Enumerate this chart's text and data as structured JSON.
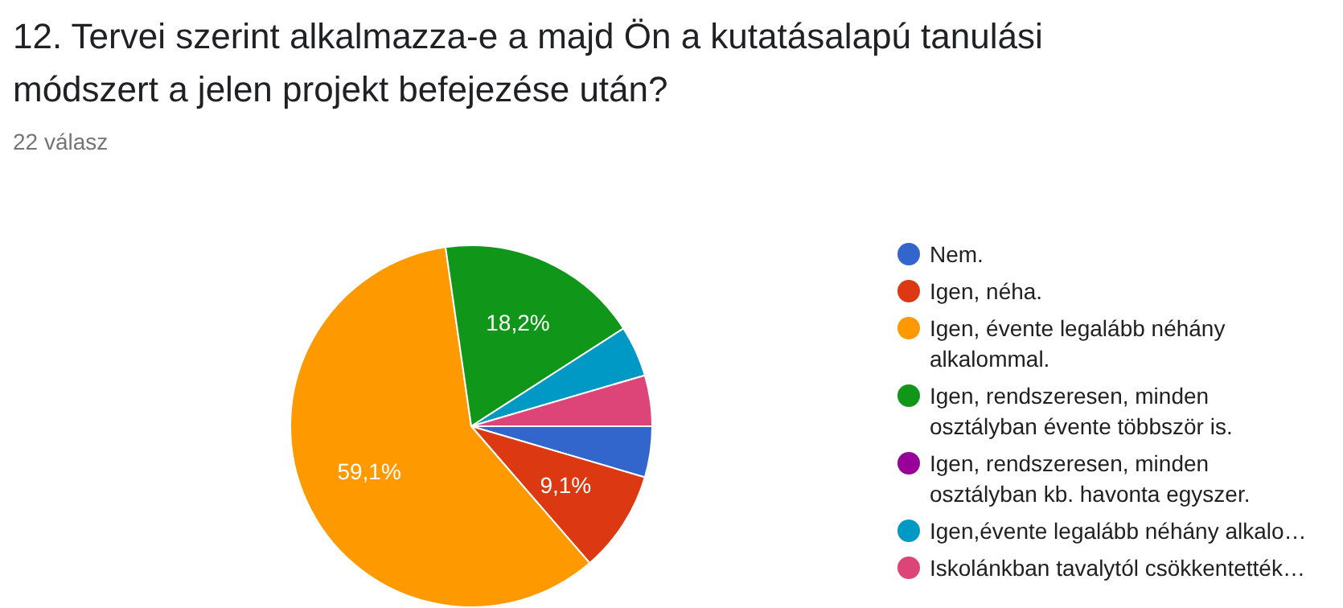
{
  "chart_data": {
    "type": "pie",
    "title": "12. Tervei szerint alkalmazza-e a majd Ön a kutatásalapú tanulási módszert a jelen projekt befejezése után?",
    "subtitle": "22 válasz",
    "categories": [
      "Nem.",
      "Igen, néha.",
      "Igen, évente legalább néhány alkalommal.",
      "Igen, rendszeresen, minden osztályban évente többször is.",
      "Igen, rendszeresen, minden osztályban kb. havonta egyszer.",
      "Igen,évente legalább néhány alkalo…",
      "Iskolánkban tavalytól csökkentették…"
    ],
    "values": [
      4.55,
      9.09,
      59.09,
      18.18,
      0,
      4.55,
      4.54
    ],
    "colors": [
      "#3366cc",
      "#dc3912",
      "#ff9900",
      "#109618",
      "#990099",
      "#0099c6",
      "#dd4477"
    ],
    "value_labels": [
      null,
      "9,1%",
      "59,1%",
      "18,2%",
      null,
      null,
      null
    ],
    "legend": "right"
  }
}
